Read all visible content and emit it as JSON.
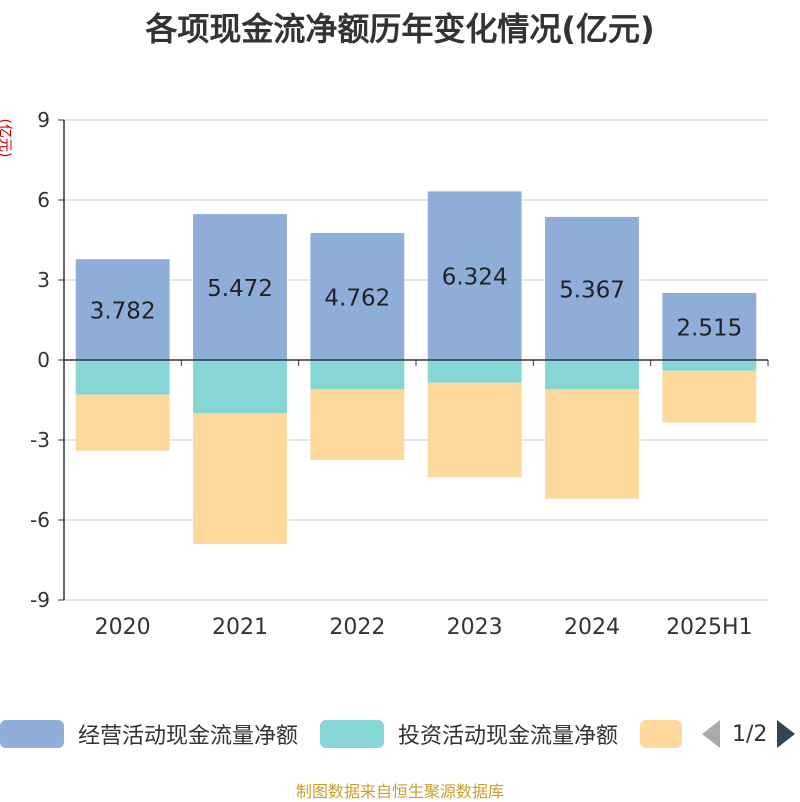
{
  "title": "各项现金流净额历年变化情况(亿元)",
  "unit_label": "(亿元)",
  "footer": "制图数据来自恒生聚源数据库",
  "legend": {
    "items": [
      "经营活动现金流量净额",
      "投资活动现金流量净额",
      ""
    ],
    "page": "1/2"
  },
  "colors": {
    "operating": "#8eadd9",
    "investing": "#86d6d6",
    "third": "#ffd99b",
    "axis": "#333333",
    "grid": "#cccccc"
  },
  "chart_data": {
    "type": "bar",
    "stacked": true,
    "categories": [
      "2020",
      "2021",
      "2022",
      "2023",
      "2024",
      "2025H1"
    ],
    "ylim": [
      -9,
      9
    ],
    "yticks": [
      9,
      6,
      3,
      0,
      -3,
      -6,
      -9
    ],
    "series": [
      {
        "name": "经营活动现金流量净额",
        "values": [
          3.782,
          5.472,
          4.762,
          6.324,
          5.367,
          2.515
        ],
        "labels": [
          "3.782",
          "5.472",
          "4.762",
          "6.324",
          "5.367",
          "2.515"
        ]
      },
      {
        "name": "投资活动现金流量净额",
        "values": [
          -1.3,
          -2.0,
          -1.1,
          -0.85,
          -1.1,
          -0.4
        ]
      },
      {
        "values": [
          -2.1,
          -4.9,
          -2.65,
          -3.55,
          -4.1,
          -1.95
        ]
      }
    ]
  }
}
